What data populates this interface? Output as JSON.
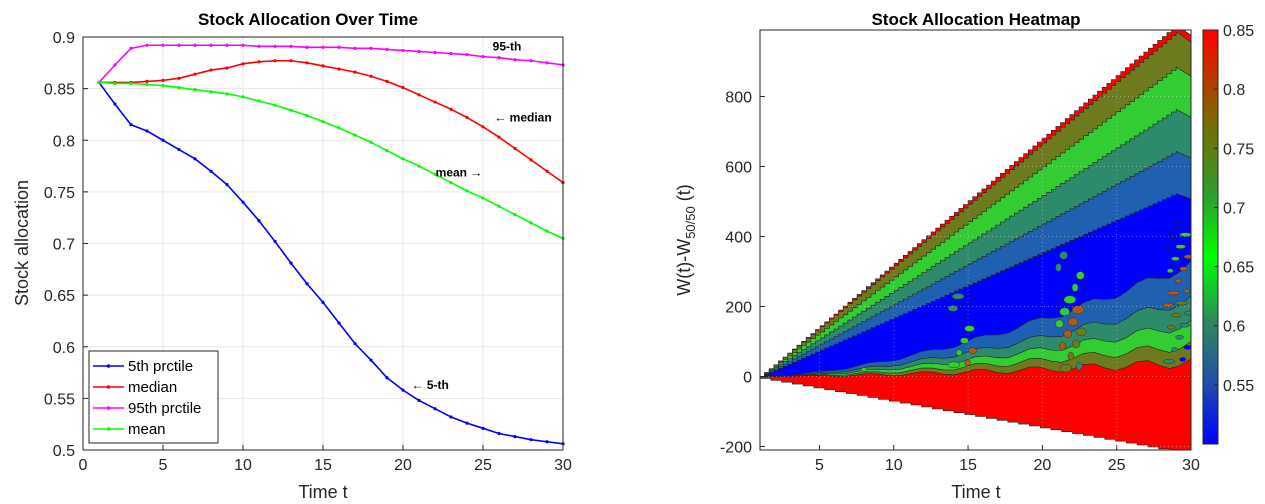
{
  "chart_data": [
    {
      "type": "line",
      "title": "Stock Allocation Over Time",
      "xlabel": "Time t",
      "ylabel": "Stock allocation",
      "xlim": [
        0,
        30
      ],
      "ylim": [
        0.5,
        0.9
      ],
      "xticks": [
        "0",
        "5",
        "10",
        "15",
        "20",
        "25",
        "30"
      ],
      "yticks": [
        "0.5",
        "0.55",
        "0.6",
        "0.65",
        "0.7",
        "0.75",
        "0.8",
        "0.85",
        "0.9"
      ],
      "grid": true,
      "legend_position": "bottom-left",
      "x": [
        1,
        2,
        3,
        4,
        5,
        6,
        7,
        8,
        9,
        10,
        11,
        12,
        13,
        14,
        15,
        16,
        17,
        18,
        19,
        20,
        21,
        22,
        23,
        24,
        25,
        26,
        27,
        28,
        29,
        30
      ],
      "series": [
        {
          "name": "5th prctile",
          "color": "#0000ff",
          "values": [
            0.856,
            0.835,
            0.815,
            0.809,
            0.8,
            0.791,
            0.782,
            0.77,
            0.757,
            0.74,
            0.722,
            0.702,
            0.681,
            0.661,
            0.643,
            0.623,
            0.603,
            0.587,
            0.57,
            0.558,
            0.548,
            0.54,
            0.532,
            0.526,
            0.521,
            0.516,
            0.513,
            0.51,
            0.508,
            0.506
          ]
        },
        {
          "name": "median",
          "color": "#ff0000",
          "values": [
            0.856,
            0.856,
            0.856,
            0.857,
            0.858,
            0.86,
            0.864,
            0.868,
            0.87,
            0.874,
            0.876,
            0.877,
            0.877,
            0.875,
            0.872,
            0.869,
            0.866,
            0.862,
            0.857,
            0.851,
            0.844,
            0.837,
            0.83,
            0.822,
            0.813,
            0.803,
            0.792,
            0.781,
            0.77,
            0.759
          ]
        },
        {
          "name": "95th prctile",
          "color": "#ff00ff",
          "values": [
            0.856,
            0.873,
            0.889,
            0.892,
            0.892,
            0.892,
            0.892,
            0.892,
            0.892,
            0.892,
            0.891,
            0.891,
            0.891,
            0.89,
            0.89,
            0.89,
            0.889,
            0.889,
            0.888,
            0.887,
            0.886,
            0.885,
            0.884,
            0.883,
            0.881,
            0.88,
            0.878,
            0.877,
            0.875,
            0.873
          ]
        },
        {
          "name": "mean",
          "color": "#00ff00",
          "values": [
            0.856,
            0.855,
            0.855,
            0.854,
            0.853,
            0.851,
            0.849,
            0.847,
            0.845,
            0.842,
            0.838,
            0.834,
            0.829,
            0.824,
            0.818,
            0.812,
            0.805,
            0.798,
            0.79,
            0.782,
            0.775,
            0.767,
            0.759,
            0.751,
            0.744,
            0.736,
            0.728,
            0.72,
            0.712,
            0.705
          ]
        }
      ],
      "annotations": [
        {
          "text": "95-th",
          "x": 26.5,
          "y": 0.887
        },
        {
          "text": "← median",
          "x": 27.5,
          "y": 0.818
        },
        {
          "text": "mean →",
          "x": 23.5,
          "y": 0.765
        },
        {
          "text": "← 5-th",
          "x": 21.7,
          "y": 0.559
        }
      ]
    },
    {
      "type": "heatmap",
      "title": "Stock Allocation Heatmap",
      "xlabel": "Time t",
      "ylabel_main": "W(t)-W",
      "ylabel_sub": "50/50",
      "ylabel_tail": " (t)",
      "xlim": [
        1,
        30
      ],
      "ylim": [
        -210,
        990
      ],
      "xticks": [
        "5",
        "10",
        "15",
        "20",
        "25",
        "30"
      ],
      "yticks": [
        "-200",
        "0",
        "200",
        "400",
        "600",
        "800"
      ],
      "grid": true,
      "colorbar": {
        "range": [
          0.5,
          0.85
        ],
        "ticks": [
          "0.55",
          "0.6",
          "0.65",
          "0.7",
          "0.75",
          "0.8",
          "0.85"
        ],
        "colors": [
          "#0000ff",
          "#1f4fa8",
          "#2e8a5a",
          "#00ff00",
          "#2e9e2e",
          "#7a6a00",
          "#ff0000"
        ]
      },
      "region_colors": {
        "blue": "#0000ff",
        "steel": "#2060b0",
        "teal": "#2d8a6a",
        "green": "#33cc33",
        "olive": "#6e7a1e",
        "brown": "#b05a10",
        "red": "#ff0000"
      }
    }
  ]
}
